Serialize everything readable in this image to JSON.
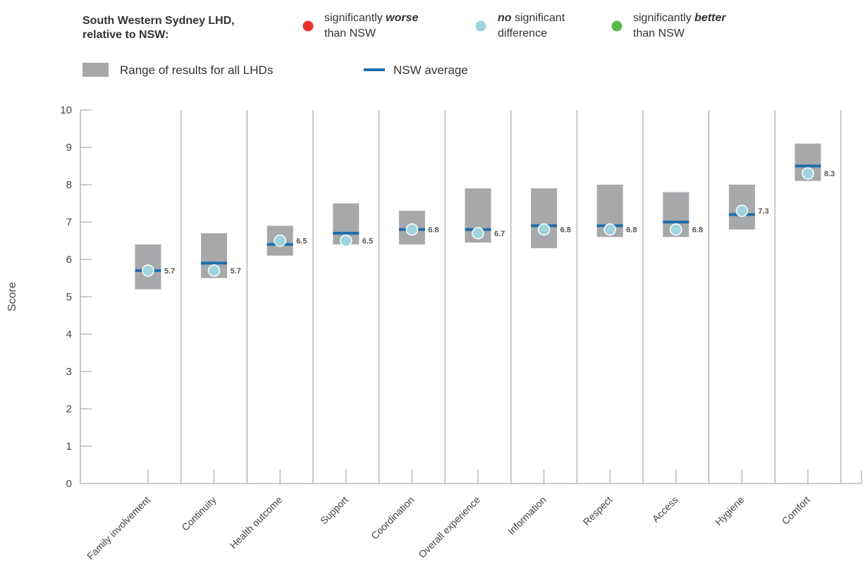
{
  "legend": {
    "title_line1": "South Western Sydney LHD,",
    "title_line2": "relative to NSW:",
    "worse": {
      "line1_pre": "significantly ",
      "line1_em": "worse",
      "line2": "than NSW",
      "color": "#e8312f"
    },
    "nodiff": {
      "line1_em": "no",
      "line1_post": " significant",
      "line2": "difference",
      "color": "#9fd4df"
    },
    "better": {
      "line1_pre": "significantly ",
      "line1_em": "better",
      "line2": "than NSW",
      "color": "#56b947"
    },
    "range_label": "Range of results for all LHDs",
    "avg_label": "NSW average"
  },
  "colors": {
    "range": "#a7a8aa",
    "average": "#1f6fad",
    "point": "#9fd4df",
    "axis": "#9a9a9a"
  },
  "chart_data": {
    "type": "range-dot",
    "ylabel": "Score",
    "ylim": [
      0,
      10
    ],
    "yticks": [
      0,
      1,
      2,
      3,
      4,
      5,
      6,
      7,
      8,
      9,
      10
    ],
    "grid": false,
    "categories": [
      "Family involvement",
      "Continuity",
      "Health outcome",
      "Support",
      "Coordination",
      "Overall experience",
      "Information",
      "Respect",
      "Access",
      "Hygiene",
      "Comfort"
    ],
    "range_min": [
      5.2,
      5.5,
      6.1,
      6.4,
      6.4,
      6.45,
      6.3,
      6.6,
      6.6,
      6.8,
      8.1
    ],
    "range_max": [
      6.4,
      6.7,
      6.9,
      7.5,
      7.3,
      7.9,
      7.9,
      8.0,
      7.8,
      8.0,
      9.1
    ],
    "nsw_average": [
      5.7,
      5.9,
      6.4,
      6.7,
      6.8,
      6.8,
      6.9,
      6.9,
      7.0,
      7.2,
      8.5
    ],
    "lhd_values": [
      5.7,
      5.7,
      6.5,
      6.5,
      6.8,
      6.7,
      6.8,
      6.8,
      6.8,
      7.3,
      8.3
    ],
    "lhd_labels": [
      "5.7",
      "5.7",
      "6.5",
      "6.5",
      "6.8",
      "6.7",
      "6.8",
      "6.8",
      "6.8",
      "7.3",
      "8.3"
    ],
    "significance": [
      "none",
      "none",
      "none",
      "none",
      "none",
      "none",
      "none",
      "none",
      "none",
      "none",
      "none"
    ]
  }
}
